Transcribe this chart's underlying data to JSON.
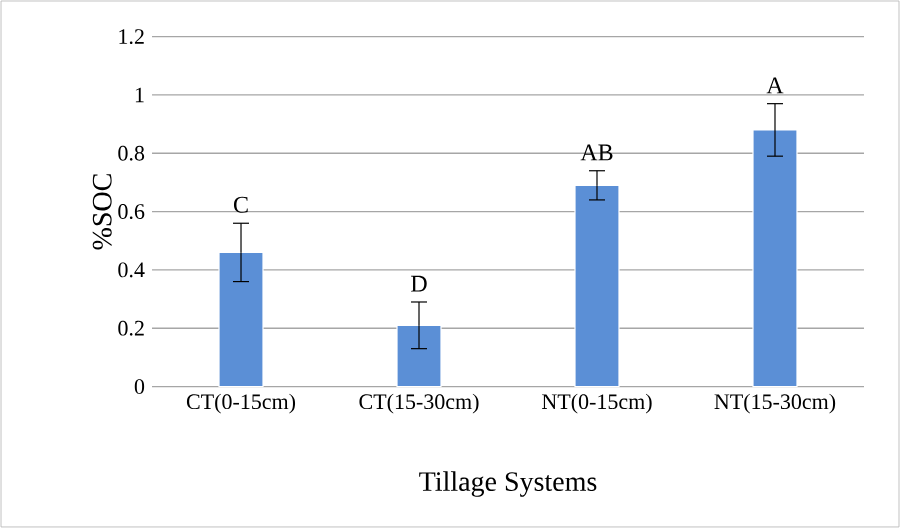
{
  "chart_data": {
    "type": "bar",
    "xlabel": "Tillage Systems",
    "ylabel": "%SOC",
    "categories": [
      "CT(0-15cm)",
      "CT(15-30cm)",
      "NT(0-15cm)",
      "NT(15-30cm)"
    ],
    "values": [
      0.46,
      0.21,
      0.69,
      0.88
    ],
    "errors": [
      0.1,
      0.08,
      0.05,
      0.09
    ],
    "color": "#5b8fd6",
    "ylim": [
      0,
      1.2
    ],
    "yticks": [
      0,
      0.2,
      0.4,
      0.6,
      0.8,
      1,
      1.2
    ],
    "grid": "y",
    "annotations": [
      "C",
      "D",
      "AB",
      "A"
    ]
  }
}
